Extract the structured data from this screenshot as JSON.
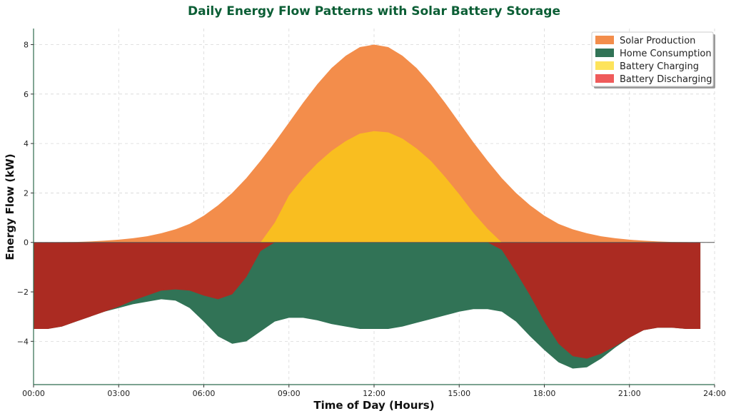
{
  "colors": {
    "title": "#0b5e35",
    "axis": "#2e6b4d",
    "solar": "#f38d4b",
    "home": "#317356",
    "charging": "#f9be20",
    "discharging": "#ab2b22",
    "legend_home": "#317356",
    "legend_charging": "#fde35b",
    "legend_discharging": "#ef5b5b"
  },
  "chart_data": {
    "type": "area",
    "title": "Daily Energy Flow Patterns with Solar Battery Storage",
    "xlabel": "Time of Day (Hours)",
    "ylabel": "Energy Flow (kW)",
    "xlim": [
      0,
      24
    ],
    "ylim": [
      -5.75,
      8.65
    ],
    "xticks": [
      0,
      3,
      6,
      9,
      12,
      15,
      18,
      21,
      24
    ],
    "xtick_labels": [
      "00:00",
      "03:00",
      "06:00",
      "09:00",
      "12:00",
      "15:00",
      "18:00",
      "21:00",
      "24:00"
    ],
    "yticks": [
      -4,
      -2,
      0,
      2,
      4,
      6,
      8
    ],
    "ytick_labels": [
      "−4",
      "−2",
      "0",
      "2",
      "4",
      "6",
      "8"
    ],
    "grid": true,
    "legend_position": "top-right",
    "x": [
      0,
      0.5,
      1,
      1.5,
      2,
      2.5,
      3,
      3.5,
      4,
      4.5,
      5,
      5.5,
      6,
      6.5,
      7,
      7.5,
      8,
      8.5,
      9,
      9.5,
      10,
      10.5,
      11,
      11.5,
      12,
      12.5,
      13,
      13.5,
      14,
      14.5,
      15,
      15.5,
      16,
      16.5,
      17,
      17.5,
      18,
      18.5,
      19,
      19.5,
      20,
      20.5,
      21,
      21.5,
      22,
      22.5,
      23,
      23.5
    ],
    "series": [
      {
        "name": "Solar Production",
        "values": [
          0,
          0,
          0.01,
          0.02,
          0.04,
          0.07,
          0.11,
          0.17,
          0.25,
          0.37,
          0.53,
          0.75,
          1.08,
          1.5,
          2.0,
          2.6,
          3.3,
          4.05,
          4.85,
          5.65,
          6.4,
          7.05,
          7.55,
          7.9,
          8.0,
          7.9,
          7.55,
          7.05,
          6.4,
          5.65,
          4.85,
          4.05,
          3.3,
          2.6,
          2.0,
          1.5,
          1.08,
          0.75,
          0.53,
          0.37,
          0.25,
          0.17,
          0.11,
          0.07,
          0.04,
          0.02,
          0.01,
          0
        ]
      },
      {
        "name": "Battery Charging",
        "values": [
          0,
          0,
          0,
          0,
          0,
          0,
          0,
          0,
          0,
          0,
          0,
          0,
          0,
          0,
          0,
          0,
          0,
          0.8,
          1.9,
          2.6,
          3.2,
          3.7,
          4.1,
          4.4,
          4.5,
          4.45,
          4.2,
          3.8,
          3.3,
          2.65,
          1.95,
          1.2,
          0.55,
          0,
          0,
          0,
          0,
          0,
          0,
          0,
          0,
          0,
          0,
          0,
          0,
          0,
          0,
          0
        ]
      },
      {
        "name": "Home Consumption",
        "values": [
          -3.5,
          -3.5,
          -3.4,
          -3.2,
          -3.0,
          -2.8,
          -2.6,
          -2.35,
          -2.15,
          -1.95,
          -1.9,
          -1.95,
          -2.15,
          -2.3,
          -2.1,
          -1.4,
          -0.35,
          0,
          0,
          0,
          0,
          0,
          0,
          0,
          0,
          0,
          0,
          0,
          0,
          0,
          0,
          0,
          0,
          -0.3,
          -1.2,
          -2.15,
          -3.2,
          -4.1,
          -4.6,
          -4.7,
          -4.5,
          -4.2,
          -3.85,
          -3.55,
          -3.45,
          -3.45,
          -3.5,
          -3.5
        ]
      },
      {
        "name": "Home Consumption (total)",
        "values": [
          -3.5,
          -3.5,
          -3.4,
          -3.2,
          -3.0,
          -2.8,
          -2.65,
          -2.5,
          -2.4,
          -2.3,
          -2.35,
          -2.65,
          -3.2,
          -3.8,
          -4.1,
          -4.0,
          -3.6,
          -3.2,
          -3.05,
          -3.05,
          -3.15,
          -3.3,
          -3.4,
          -3.5,
          -3.5,
          -3.5,
          -3.4,
          -3.25,
          -3.1,
          -2.95,
          -2.8,
          -2.7,
          -2.7,
          -2.8,
          -3.2,
          -3.8,
          -4.35,
          -4.85,
          -5.1,
          -5.05,
          -4.7,
          -4.25,
          -3.85,
          -3.55,
          -3.45,
          -3.45,
          -3.5,
          -3.5
        ]
      }
    ],
    "legend": [
      "Solar Production",
      "Home Consumption",
      "Battery Charging",
      "Battery Discharging"
    ]
  }
}
